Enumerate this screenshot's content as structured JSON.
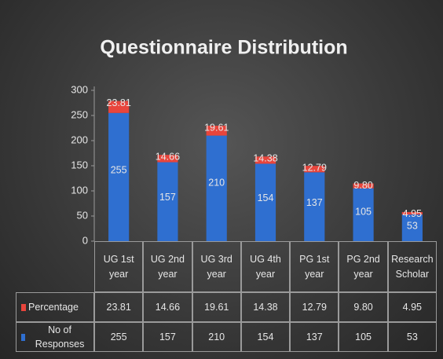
{
  "chart_data": {
    "type": "stacked_bar",
    "title": "Questionnaire Distribution",
    "categories": [
      "UG 1st year",
      "UG 2nd year",
      "UG 3rd year",
      "UG 4th year",
      "PG 1st year",
      "PG 2nd year",
      "Research Scholar"
    ],
    "series": [
      {
        "name": "Percentage",
        "color": "#e8453c",
        "values": [
          23.81,
          14.66,
          19.61,
          14.38,
          12.79,
          9.8,
          4.95
        ],
        "value_labels": [
          "23.81",
          "14.66",
          "19.61",
          "14.38",
          "12.79",
          "9.80",
          "4.95"
        ]
      },
      {
        "name": "No of Responses",
        "color": "#2f6fd0",
        "values": [
          255,
          157,
          210,
          154,
          137,
          105,
          53
        ]
      }
    ],
    "ylim": [
      0,
      300
    ],
    "yticks": [
      0,
      50,
      100,
      150,
      200,
      250,
      300
    ],
    "grid": false
  }
}
